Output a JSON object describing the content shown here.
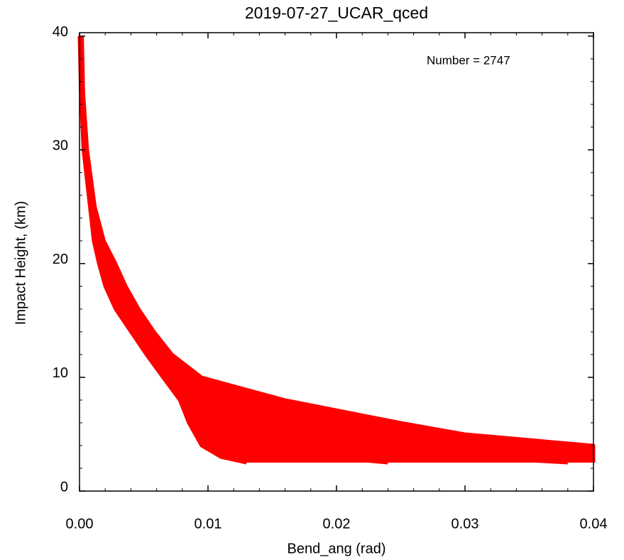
{
  "chart_data": {
    "type": "line",
    "title": "2019-07-27_UCAR_qced",
    "annotation": "Number = 2747",
    "x_label": "Bend_ang (rad)",
    "y_label": "Impact Height, (km)",
    "xlim": [
      0,
      0.04
    ],
    "ylim": [
      0,
      40.3
    ],
    "xticks": [
      {
        "value": 0,
        "label": "0.00"
      },
      {
        "value": 0.01,
        "label": "0.01"
      },
      {
        "value": 0.02,
        "label": "0.02"
      },
      {
        "value": 0.03,
        "label": "0.03"
      },
      {
        "value": 0.04,
        "label": "0.04"
      }
    ],
    "yticks": [
      0,
      10,
      20,
      30,
      40
    ],
    "y": [
      40,
      35,
      30,
      25,
      22,
      20,
      18,
      16,
      14,
      12,
      10,
      8,
      6,
      5,
      4,
      3,
      2.5
    ],
    "series": [
      {
        "color": "#ff0000",
        "values": [
          0.0,
          0.0001,
          0.0003,
          0.0008,
          0.0011,
          0.0015,
          0.002,
          0.0028,
          0.004,
          0.0052,
          0.0065,
          0.0078,
          0.0085,
          0.009,
          0.0095,
          0.011,
          0.013
        ]
      },
      {
        "color": "#ff0000",
        "values": [
          0.0001,
          0.0002,
          0.0004,
          0.0009,
          0.0013,
          0.0018,
          0.0024,
          0.0033,
          0.0045,
          0.0056,
          0.007,
          0.009,
          0.011,
          0.0125,
          0.015,
          0.019,
          0.024
        ]
      },
      {
        "color": "#ff0000",
        "values": [
          0.0001,
          0.0002,
          0.0004,
          0.001,
          0.0015,
          0.0021,
          0.0028,
          0.0038,
          0.005,
          0.0062,
          0.0078,
          0.01,
          0.014,
          0.0175,
          0.022,
          0.03,
          0.038
        ]
      },
      {
        "color": "#ff0000",
        "values": [
          0.0001,
          0.0002,
          0.0005,
          0.0011,
          0.0017,
          0.0024,
          0.0032,
          0.0042,
          0.0054,
          0.0067,
          0.0086,
          0.0125,
          0.019,
          0.024,
          0.03,
          0.04,
          0.04
        ]
      },
      {
        "color": "#ff0000",
        "values": [
          0.0002,
          0.0003,
          0.0006,
          0.0012,
          0.0019,
          0.0028,
          0.0036,
          0.0046,
          0.0058,
          0.0072,
          0.0095,
          0.016,
          0.025,
          0.03,
          0.04,
          0.04,
          0.04
        ]
      }
    ]
  }
}
